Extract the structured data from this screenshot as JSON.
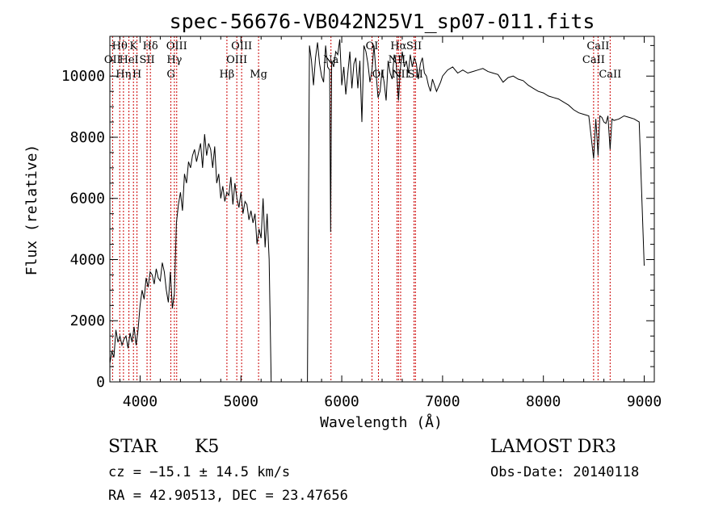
{
  "chart_data": {
    "type": "line",
    "title": "spec-56676-VB042N25V1_sp07-011.fits",
    "xlabel": "Wavelength (Å)",
    "ylabel": "Flux (relative)",
    "xlim": [
      3700,
      9100
    ],
    "ylim": [
      0,
      11300
    ],
    "xticks": [
      4000,
      5000,
      6000,
      7000,
      8000,
      9000
    ],
    "yticks": [
      0,
      2000,
      4000,
      6000,
      8000,
      10000
    ],
    "series": [
      {
        "name": "flux",
        "x": [
          3700,
          3720,
          3740,
          3760,
          3780,
          3800,
          3820,
          3840,
          3860,
          3880,
          3900,
          3920,
          3940,
          3960,
          3980,
          4000,
          4020,
          4040,
          4060,
          4080,
          4100,
          4120,
          4140,
          4160,
          4180,
          4200,
          4220,
          4240,
          4260,
          4280,
          4300,
          4320,
          4340,
          4360,
          4380,
          4400,
          4420,
          4440,
          4460,
          4480,
          4500,
          4520,
          4540,
          4560,
          4580,
          4600,
          4620,
          4640,
          4660,
          4680,
          4700,
          4720,
          4740,
          4760,
          4780,
          4800,
          4820,
          4840,
          4860,
          4880,
          4900,
          4920,
          4940,
          4960,
          4980,
          5000,
          5020,
          5040,
          5060,
          5080,
          5100,
          5120,
          5140,
          5160,
          5180,
          5200,
          5220,
          5240,
          5260,
          5280,
          5300,
          5660,
          5680,
          5700,
          5720,
          5740,
          5760,
          5780,
          5800,
          5820,
          5840,
          5860,
          5880,
          5890,
          5900,
          5920,
          5940,
          5960,
          5980,
          6000,
          6020,
          6040,
          6060,
          6080,
          6100,
          6120,
          6140,
          6160,
          6180,
          6200,
          6220,
          6240,
          6260,
          6280,
          6300,
          6320,
          6340,
          6360,
          6380,
          6400,
          6420,
          6440,
          6460,
          6480,
          6500,
          6520,
          6540,
          6563,
          6580,
          6600,
          6620,
          6640,
          6660,
          6680,
          6700,
          6720,
          6740,
          6760,
          6780,
          6800,
          6820,
          6840,
          6860,
          6880,
          6900,
          6940,
          6980,
          7000,
          7050,
          7100,
          7150,
          7200,
          7250,
          7300,
          7350,
          7400,
          7450,
          7500,
          7550,
          7600,
          7650,
          7700,
          7750,
          7800,
          7850,
          7900,
          7950,
          8000,
          8050,
          8100,
          8150,
          8200,
          8250,
          8300,
          8350,
          8400,
          8450,
          8498,
          8520,
          8542,
          8560,
          8580,
          8600,
          8620,
          8640,
          8662,
          8680,
          8700,
          8750,
          8800,
          8850,
          8900,
          8950,
          9000
        ],
        "values": [
          600,
          1000,
          800,
          1700,
          1300,
          1500,
          1200,
          1400,
          1500,
          1100,
          1600,
          1300,
          1800,
          1200,
          1700,
          2500,
          3000,
          2700,
          3400,
          3100,
          3600,
          3500,
          3200,
          3700,
          3400,
          3300,
          3900,
          3600,
          3000,
          2600,
          3600,
          2400,
          2900,
          5200,
          5800,
          6200,
          5600,
          6800,
          6500,
          7200,
          7000,
          7400,
          7600,
          7200,
          7500,
          7800,
          7000,
          8100,
          7400,
          7800,
          7600,
          7000,
          7700,
          6500,
          6800,
          6000,
          6400,
          5900,
          6200,
          6100,
          6700,
          5800,
          6500,
          6000,
          5700,
          6200,
          5500,
          5900,
          5800,
          5300,
          5600,
          5200,
          5500,
          4500,
          5000,
          4700,
          6000,
          4400,
          5500,
          4000,
          0,
          0,
          11000,
          10500,
          9700,
          10600,
          11100,
          10400,
          10000,
          9800,
          11000,
          10300,
          10200,
          4900,
          10500,
          10300,
          10800,
          10700,
          11200,
          9700,
          10300,
          9400,
          10100,
          10800,
          9600,
          10400,
          10600,
          9600,
          10500,
          8500,
          11000,
          10800,
          10400,
          9800,
          10200,
          11000,
          10100,
          9300,
          9500,
          10200,
          9800,
          9200,
          10500,
          10100,
          9900,
          10700,
          10400,
          9200,
          10200,
          10800,
          10300,
          10500,
          10100,
          10700,
          10300,
          10600,
          10400,
          9900,
          10400,
          10600,
          10100,
          10000,
          9700,
          9500,
          9900,
          9500,
          9800,
          10000,
          10200,
          10300,
          10100,
          10200,
          10100,
          10150,
          10200,
          10250,
          10150,
          10100,
          10050,
          9800,
          9950,
          10000,
          9900,
          9850,
          9700,
          9600,
          9500,
          9450,
          9350,
          9300,
          9250,
          9150,
          9050,
          8900,
          8800,
          8750,
          8700,
          7300,
          8600,
          7400,
          8700,
          8650,
          8500,
          8450,
          8700,
          7600,
          8600,
          8550,
          8600,
          8700,
          8650,
          8600,
          8500,
          3800
        ]
      }
    ],
    "line_markers": [
      {
        "label": "Hθ",
        "wavelength": 3798,
        "row": 1
      },
      {
        "label": "OII",
        "wavelength": 3727,
        "row": 2
      },
      {
        "label": "Hη",
        "wavelength": 3835,
        "row": 3
      },
      {
        "label": "K",
        "wavelength": 3934,
        "row": 1
      },
      {
        "label": "HeI",
        "wavelength": 3889,
        "row": 2
      },
      {
        "label": "SII",
        "wavelength": 4069,
        "row": 2
      },
      {
        "label": "H",
        "wavelength": 3969,
        "row": 3
      },
      {
        "label": "Hδ",
        "wavelength": 4102,
        "row": 1
      },
      {
        "label": "OIII",
        "wavelength": 4363,
        "row": 1
      },
      {
        "label": "Hγ",
        "wavelength": 4340,
        "row": 2
      },
      {
        "label": "G",
        "wavelength": 4305,
        "row": 3
      },
      {
        "label": "OIII",
        "wavelength": 5007,
        "row": 1
      },
      {
        "label": "OIII",
        "wavelength": 4959,
        "row": 2
      },
      {
        "label": "Hβ",
        "wavelength": 4861,
        "row": 3
      },
      {
        "label": "Mg",
        "wavelength": 5175,
        "row": 3
      },
      {
        "label": "Na",
        "wavelength": 5893,
        "row": 2
      },
      {
        "label": "OI",
        "wavelength": 6300,
        "row": 1
      },
      {
        "label": "OI",
        "wavelength": 6364,
        "row": 3
      },
      {
        "label": "Hα",
        "wavelength": 6563,
        "row": 1
      },
      {
        "label": "SII",
        "wavelength": 6717,
        "row": 1
      },
      {
        "label": "NII",
        "wavelength": 6548,
        "row": 2
      },
      {
        "label": "NII",
        "wavelength": 6584,
        "row": 3
      },
      {
        "label": "SII",
        "wavelength": 6731,
        "row": 3
      },
      {
        "label": "CaII",
        "wavelength": 8542,
        "row": 1
      },
      {
        "label": "CaII",
        "wavelength": 8498,
        "row": 2
      },
      {
        "label": "CaII",
        "wavelength": 8662,
        "row": 3
      }
    ]
  },
  "info": {
    "object_class": "STAR",
    "subclass": "K5",
    "survey": "LAMOST DR3",
    "cz": "cz = −15.1 ± 14.5 km/s",
    "obs_date": "Obs-Date: 20140118",
    "radec": "RA =  42.90513, DEC =  23.47656"
  },
  "colors": {
    "axis": "#000000",
    "spectrum": "#000000",
    "marker_line": "#cc0000",
    "background": "#ffffff"
  }
}
